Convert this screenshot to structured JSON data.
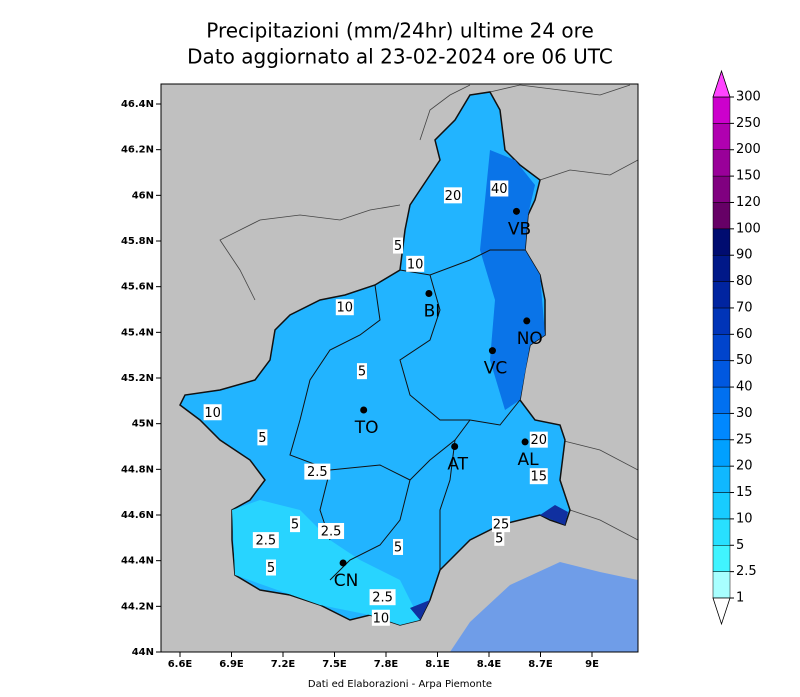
{
  "header": {
    "title_line1": "Precipitazioni (mm/24hr) ultime 24 ore",
    "title_line2": "Dato aggiornato al 23-02-2024 ore 06 UTC"
  },
  "map": {
    "xticks": [
      {
        "value": 6.6,
        "label": "6.6E"
      },
      {
        "value": 6.9,
        "label": "6.9E"
      },
      {
        "value": 7.2,
        "label": "7.2E"
      },
      {
        "value": 7.5,
        "label": "7.5E"
      },
      {
        "value": 7.8,
        "label": "7.8E"
      },
      {
        "value": 8.1,
        "label": "8.1E"
      },
      {
        "value": 8.4,
        "label": "8.4E"
      },
      {
        "value": 8.7,
        "label": "8.7E"
      },
      {
        "value": 9,
        "label": "9E"
      }
    ],
    "yticks": [
      {
        "value": 44,
        "label": "44N"
      },
      {
        "value": 44.2,
        "label": "44.2N"
      },
      {
        "value": 44.4,
        "label": "44.4N"
      },
      {
        "value": 44.6,
        "label": "44.6N"
      },
      {
        "value": 44.8,
        "label": "44.8N"
      },
      {
        "value": 45,
        "label": "45N"
      },
      {
        "value": 45.2,
        "label": "45.2N"
      },
      {
        "value": 45.4,
        "label": "45.4N"
      },
      {
        "value": 45.6,
        "label": "45.6N"
      },
      {
        "value": 45.8,
        "label": "45.8N"
      },
      {
        "value": 46,
        "label": "46N"
      },
      {
        "value": 46.2,
        "label": "46.2N"
      },
      {
        "value": 46.4,
        "label": "46.4N"
      }
    ],
    "cities": [
      {
        "label": "VB",
        "lon": 8.56,
        "lat": 45.93
      },
      {
        "label": "BI",
        "lon": 8.05,
        "lat": 45.57
      },
      {
        "label": "NO",
        "lon": 8.62,
        "lat": 45.45
      },
      {
        "label": "VC",
        "lon": 8.42,
        "lat": 45.32
      },
      {
        "label": "TO",
        "lon": 7.67,
        "lat": 45.06
      },
      {
        "label": "AT",
        "lon": 8.2,
        "lat": 44.9
      },
      {
        "label": "AL",
        "lon": 8.61,
        "lat": 44.92
      },
      {
        "label": "CN",
        "lon": 7.55,
        "lat": 44.39
      }
    ],
    "contour_labels": [
      {
        "label": "10",
        "lon": 6.79,
        "lat": 45.05
      },
      {
        "label": "5",
        "lon": 7.08,
        "lat": 44.94
      },
      {
        "label": "2.5",
        "lon": 7.4,
        "lat": 44.79
      },
      {
        "label": "5",
        "lon": 7.27,
        "lat": 44.56
      },
      {
        "label": "2.5",
        "lon": 7.48,
        "lat": 44.53
      },
      {
        "label": "2.5",
        "lon": 7.1,
        "lat": 44.49
      },
      {
        "label": "5",
        "lon": 7.13,
        "lat": 44.37
      },
      {
        "label": "5",
        "lon": 7.87,
        "lat": 44.46
      },
      {
        "label": "2.5",
        "lon": 7.78,
        "lat": 44.24
      },
      {
        "label": "10",
        "lon": 7.77,
        "lat": 44.15
      },
      {
        "label": "5",
        "lon": 7.66,
        "lat": 45.23
      },
      {
        "label": "10",
        "lon": 7.56,
        "lat": 45.51
      },
      {
        "label": "10",
        "lon": 7.97,
        "lat": 45.7
      },
      {
        "label": "5",
        "lon": 7.87,
        "lat": 45.78
      },
      {
        "label": "20",
        "lon": 8.19,
        "lat": 46.0
      },
      {
        "label": "40",
        "lon": 8.46,
        "lat": 46.03
      },
      {
        "label": "20",
        "lon": 8.69,
        "lat": 44.93
      },
      {
        "label": "15",
        "lon": 8.69,
        "lat": 44.77
      },
      {
        "label": "25",
        "lon": 8.47,
        "lat": 44.56
      },
      {
        "label": "5",
        "lon": 8.46,
        "lat": 44.5
      }
    ]
  },
  "colorbar": {
    "levels": [
      "1",
      "2.5",
      "5",
      "10",
      "15",
      "20",
      "25",
      "30",
      "40",
      "50",
      "60",
      "70",
      "80",
      "90",
      "100",
      "120",
      "150",
      "200",
      "250",
      "300"
    ],
    "band_colors": [
      "#a8ffff",
      "#40f4ff",
      "#28e0ff",
      "#18ccff",
      "#10b8ff",
      "#00a0ff",
      "#0088ff",
      "#0070f0",
      "#0058e0",
      "#0044cc",
      "#0034b8",
      "#0024a0",
      "#001888",
      "#000c70",
      "#660066",
      "#800080",
      "#990099",
      "#b000b0",
      "#cc00cc"
    ],
    "top_color": "#ff44ff",
    "bottom_color": "#ffffff"
  },
  "footer": "Dati ed Elaborazioni - Arpa Piemonte"
}
